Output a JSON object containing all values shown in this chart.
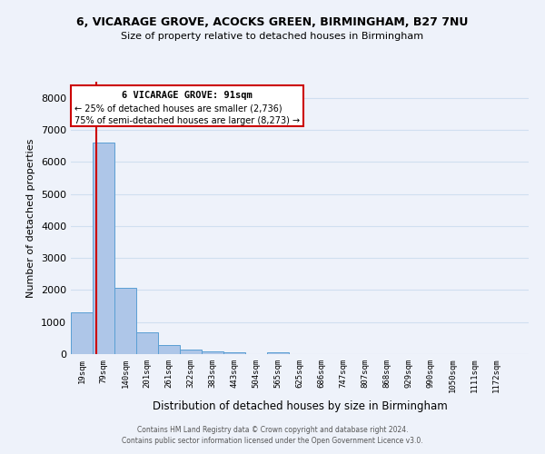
{
  "title1": "6, VICARAGE GROVE, ACOCKS GREEN, BIRMINGHAM, B27 7NU",
  "title2": "Size of property relative to detached houses in Birmingham",
  "xlabel": "Distribution of detached houses by size in Birmingham",
  "ylabel": "Number of detached properties",
  "property_label": "6 VICARAGE GROVE: 91sqm",
  "annotation_line1": "← 25% of detached houses are smaller (2,736)",
  "annotation_line2": "75% of semi-detached houses are larger (8,273) →",
  "footer1": "Contains HM Land Registry data © Crown copyright and database right 2024.",
  "footer2": "Contains public sector information licensed under the Open Government Licence v3.0.",
  "bar_left_edges": [
    19,
    79,
    140,
    201,
    261,
    322,
    383,
    443,
    504,
    565,
    625,
    686,
    747,
    807,
    868,
    929,
    990,
    1050,
    1111,
    1172
  ],
  "bar_heights": [
    1300,
    6600,
    2070,
    680,
    270,
    140,
    90,
    60,
    0,
    70,
    0,
    0,
    0,
    0,
    0,
    0,
    0,
    0,
    0,
    0
  ],
  "bin_width": 61,
  "bar_color": "#aec6e8",
  "bar_edge_color": "#5a9fd4",
  "grid_color": "#d0dff0",
  "vline_color": "#cc0000",
  "vline_x": 91,
  "annotation_box_color": "#cc0000",
  "ylim": [
    0,
    8500
  ],
  "xlim_left": 19,
  "xlim_right": 1293,
  "background_color": "#eef2fa"
}
